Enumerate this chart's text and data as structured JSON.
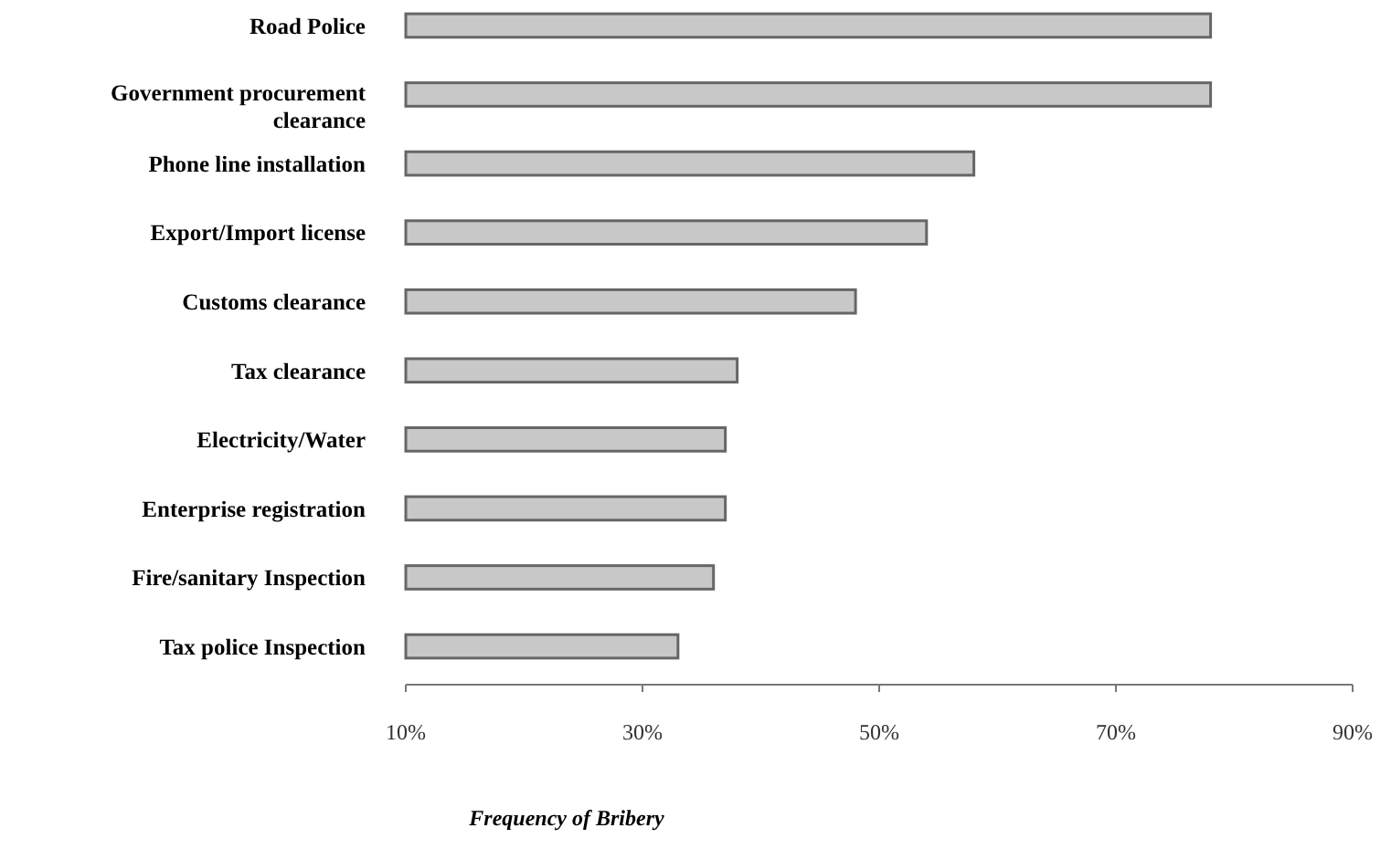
{
  "chart_data": {
    "type": "bar",
    "orientation": "horizontal",
    "xlabel": "Frequency of Bribery",
    "categories": [
      "Road Police",
      "Government procurement clearance",
      "Phone line installation",
      "Export/Import license",
      "Customs clearance",
      "Tax clearance",
      "Electricity/Water",
      "Enterprise registration",
      "Fire/sanitary Inspection",
      "Tax police Inspection"
    ],
    "values": [
      78,
      78,
      58,
      54,
      48,
      38,
      37,
      37,
      36,
      33
    ],
    "color": "#c8c8c8",
    "xlim": [
      10,
      90
    ],
    "xticks": [
      {
        "value": 10,
        "label": "10%"
      },
      {
        "value": 30,
        "label": "30%"
      },
      {
        "value": 50,
        "label": "50%"
      },
      {
        "value": 70,
        "label": "70%"
      },
      {
        "value": 90,
        "label": "90%"
      }
    ],
    "grid": false
  }
}
